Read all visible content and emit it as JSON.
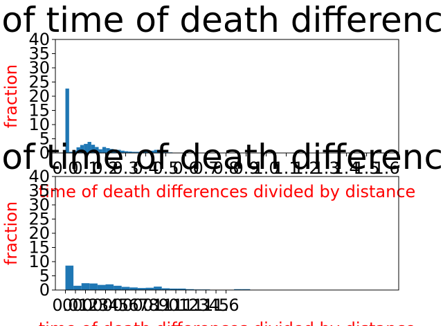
{
  "chart_data": [
    {
      "type": "bar",
      "title": "Histogram of time of death differences between",
      "xlabel": "time of death differences divided by distance",
      "ylabel": "fraction",
      "xlim": [
        -0.05,
        1.66
      ],
      "ylim": [
        0,
        40
      ],
      "yticks": [
        0,
        5,
        10,
        15,
        20,
        25,
        30,
        35,
        40
      ],
      "xticks": [
        "0.0",
        "0.1",
        "0.2",
        "0.3",
        "0.4",
        "0.5",
        "0.6",
        "0.7",
        "0.8",
        "0.9",
        "1.0",
        "1.1",
        "1.2",
        "1.3",
        "1.4",
        "1.5",
        "1.6"
      ],
      "bin_width": 0.0184,
      "bin_start": 0.0,
      "values": [
        22.7,
        0.4,
        0.8,
        2.0,
        2.8,
        3.2,
        3.9,
        2.9,
        2.1,
        1.3,
        2.1,
        1.7,
        1.4,
        1.2,
        1.1,
        0.8,
        0.6,
        0.5,
        0.4,
        0.4,
        0.4,
        0.4,
        0.3,
        0.8,
        1.1,
        0.5,
        0.2,
        0.2,
        0.2,
        0.1,
        0.1,
        0.1,
        0.1
      ],
      "color": "#1f77b4",
      "label_color": "#ff0000"
    },
    {
      "type": "bar",
      "title": "Histogram of time of death differences between",
      "xlabel": "time of death differences divided by distance",
      "ylabel": "fraction",
      "xlim": [
        -0.05,
        1.66
      ],
      "ylim": [
        0,
        40
      ],
      "yticks": [
        0,
        5,
        10,
        15,
        20,
        25,
        30,
        35,
        40
      ],
      "xticks": [
        "0.0",
        "0.1",
        "0.2",
        "0.3",
        "0.4",
        "0.5",
        "0.6",
        "0.7",
        "0.8",
        "0.9",
        "1.0",
        "1.1",
        "1.2",
        "1.3",
        "1.4",
        "1.5",
        "1.6"
      ],
      "xtick_positions": [
        0.0,
        0.05,
        0.1,
        0.15,
        0.2,
        0.25,
        0.3,
        0.35,
        0.4,
        0.45,
        0.5,
        0.55,
        0.6,
        0.65,
        0.7,
        0.75,
        0.8
      ],
      "bin_width": 0.04,
      "bin_start": 0.0,
      "values": [
        8.6,
        1.5,
        2.4,
        2.3,
        1.8,
        2.0,
        1.5,
        1.1,
        0.9,
        0.7,
        0.8,
        1.2,
        0.6,
        0.5,
        0.5,
        0.3,
        0.2,
        0.2,
        0.1,
        0.1,
        0.1,
        0.3,
        0.3,
        0.1,
        0.1
      ],
      "color": "#1f77b4",
      "label_color": "#ff0000"
    }
  ]
}
